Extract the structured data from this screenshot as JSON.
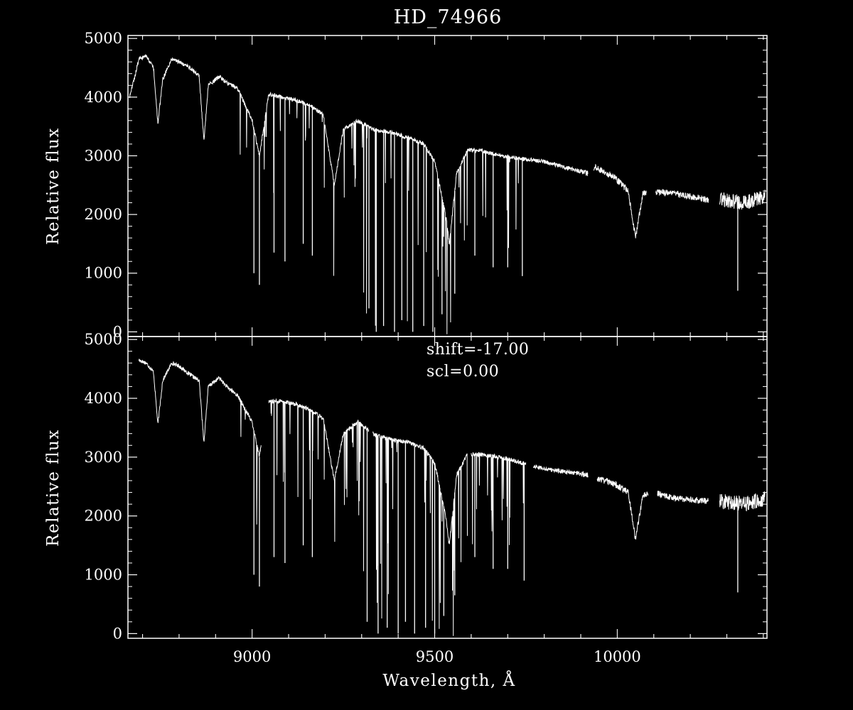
{
  "colors": {
    "background": "#000000",
    "foreground": "#ffffff"
  },
  "figure": {
    "title": "HD_74966"
  },
  "chart_data": [
    {
      "type": "line",
      "panel": "top",
      "title": "HD_74966",
      "xlabel": "",
      "ylabel": "Relative flux",
      "xlim": [
        8660,
        10410
      ],
      "ylim": [
        -80,
        5050
      ],
      "yticks": [
        0,
        1000,
        2000,
        3000,
        4000,
        5000
      ],
      "ytick_labels": [
        "0",
        "1000",
        "2000",
        "3000",
        "4000",
        "5000"
      ],
      "grid": false,
      "x": [
        8665,
        8690,
        8710,
        8730,
        8742,
        8755,
        8780,
        8800,
        8830,
        8855,
        8868,
        8880,
        8910,
        8930,
        8960,
        9000,
        9020,
        9045,
        9080,
        9120,
        9160,
        9195,
        9225,
        9250,
        9290,
        9330,
        9380,
        9430,
        9470,
        9500,
        9530,
        9540,
        9560,
        9590,
        9620,
        9680,
        9740,
        9800,
        9860,
        9920,
        9940,
        9990,
        10030,
        10050,
        10070,
        10100,
        10160,
        10250,
        10290,
        10350,
        10405
      ],
      "y": [
        4000,
        4650,
        4700,
        4500,
        3550,
        4300,
        4650,
        4600,
        4500,
        4350,
        3250,
        4200,
        4350,
        4250,
        4150,
        3600,
        3000,
        4050,
        4000,
        3950,
        3850,
        3700,
        2500,
        3450,
        3600,
        3450,
        3400,
        3300,
        3200,
        2900,
        2000,
        1500,
        2700,
        3100,
        3100,
        3000,
        2950,
        2900,
        2800,
        2700,
        2800,
        2650,
        2400,
        1600,
        2350,
        2400,
        2350,
        2250,
        2250,
        2200,
        2300
      ],
      "gaps": [
        [
          9920,
          9935
        ],
        [
          10080,
          10105
        ],
        [
          10250,
          10280
        ]
      ],
      "absorption_lines": [
        [
          9005,
          1000
        ],
        [
          9020,
          800
        ],
        [
          9060,
          1350
        ],
        [
          9090,
          1200
        ],
        [
          9140,
          1500
        ],
        [
          9165,
          1300
        ],
        [
          9320,
          400
        ],
        [
          9340,
          0
        ],
        [
          9360,
          100
        ],
        [
          9390,
          0
        ],
        [
          9410,
          200
        ],
        [
          9440,
          0
        ],
        [
          9470,
          100
        ],
        [
          9495,
          0
        ],
        [
          9520,
          300
        ],
        [
          9555,
          650
        ],
        [
          9610,
          1300
        ],
        [
          9660,
          1100
        ],
        [
          9700,
          1100
        ],
        [
          9740,
          950
        ],
        [
          10330,
          700
        ]
      ]
    },
    {
      "type": "line",
      "panel": "bottom",
      "xlabel": "Wavelength, Å",
      "ylabel": "Relative flux",
      "xlim": [
        8660,
        10410
      ],
      "ylim": [
        -80,
        5050
      ],
      "yticks": [
        0,
        1000,
        2000,
        3000,
        4000,
        5000
      ],
      "ytick_labels": [
        "0",
        "1000",
        "2000",
        "3000",
        "4000",
        "5000"
      ],
      "xticks": [
        9000,
        9500,
        10000
      ],
      "xtick_labels": [
        "9000",
        "9500",
        "10000"
      ],
      "grid": false,
      "annotations": [
        "shift=-17.00",
        "scl=0.00"
      ],
      "x": [
        8690,
        8710,
        8730,
        8742,
        8755,
        8780,
        8800,
        8830,
        8855,
        8868,
        8880,
        8910,
        8930,
        8960,
        9000,
        9020,
        9040,
        9080,
        9120,
        9160,
        9195,
        9225,
        9250,
        9290,
        9330,
        9380,
        9430,
        9470,
        9500,
        9530,
        9540,
        9560,
        9590,
        9620,
        9680,
        9740,
        9800,
        9860,
        9920,
        9940,
        9990,
        10030,
        10050,
        10070,
        10100,
        10160,
        10250,
        10290,
        10350,
        10405
      ],
      "y": [
        4650,
        4600,
        4450,
        3550,
        4300,
        4600,
        4550,
        4400,
        4300,
        3250,
        4200,
        4350,
        4200,
        4050,
        3600,
        3000,
        3950,
        3950,
        3900,
        3800,
        3650,
        2600,
        3400,
        3600,
        3400,
        3300,
        3250,
        3150,
        2900,
        2000,
        1500,
        2700,
        3050,
        3050,
        3000,
        2900,
        2800,
        2750,
        2700,
        2650,
        2550,
        2400,
        1600,
        2350,
        2400,
        2300,
        2250,
        2250,
        2200,
        2300
      ],
      "gaps": [
        [
          9025,
          9045
        ],
        [
          9320,
          9330
        ],
        [
          9590,
          9600
        ],
        [
          9750,
          9770
        ],
        [
          9920,
          9945
        ],
        [
          10085,
          10110
        ],
        [
          10250,
          10280
        ]
      ],
      "absorption_lines": [
        [
          9005,
          1000
        ],
        [
          9020,
          800
        ],
        [
          9060,
          1300
        ],
        [
          9090,
          1200
        ],
        [
          9140,
          1500
        ],
        [
          9165,
          1300
        ],
        [
          9315,
          200
        ],
        [
          9345,
          0
        ],
        [
          9370,
          100
        ],
        [
          9400,
          0
        ],
        [
          9420,
          200
        ],
        [
          9445,
          0
        ],
        [
          9475,
          100
        ],
        [
          9500,
          0
        ],
        [
          9525,
          300
        ],
        [
          9555,
          650
        ],
        [
          9610,
          1300
        ],
        [
          9660,
          1100
        ],
        [
          9700,
          1100
        ],
        [
          9745,
          900
        ],
        [
          10330,
          700
        ]
      ]
    }
  ]
}
